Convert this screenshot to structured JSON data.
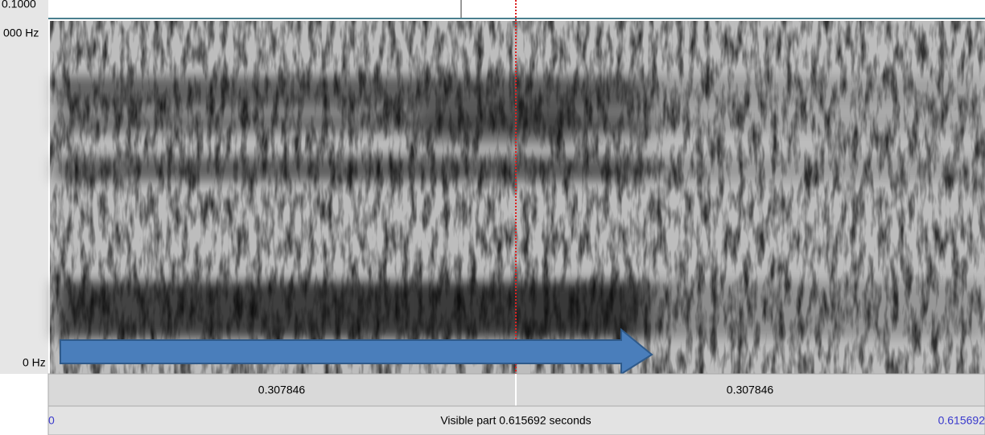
{
  "window": {
    "top_time_label": "0.1000",
    "freq_top_label": "000 Hz",
    "freq_bottom_label": "0 Hz",
    "left_segment_label": "0.307846",
    "right_segment_label": "0.307846",
    "start_label": "0",
    "visible_part_label": "Visible part 0.615692 seconds",
    "end_label": "0.615692"
  }
}
